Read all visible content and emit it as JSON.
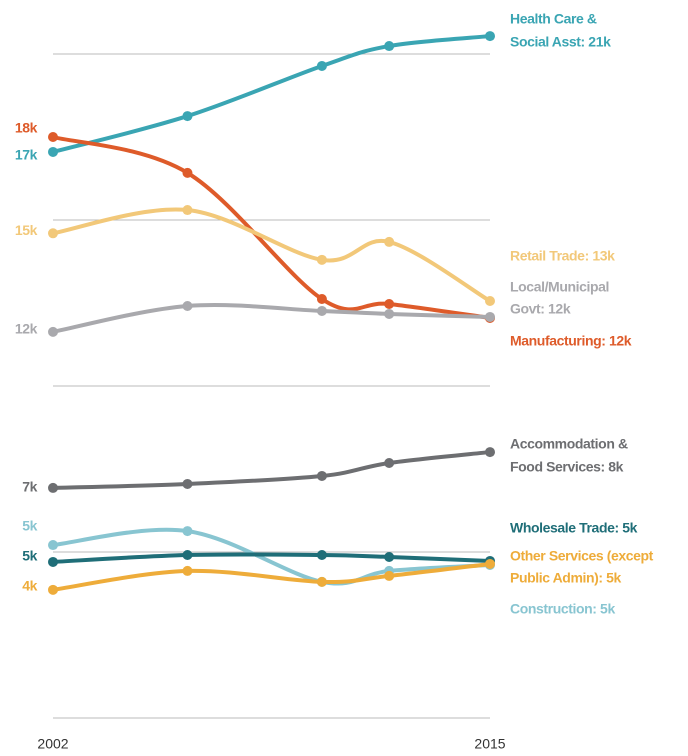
{
  "chart_data": {
    "type": "line",
    "x": [
      2002,
      2006,
      2010,
      2012,
      2015
    ],
    "xlim": [
      2002,
      2015
    ],
    "xticks": [
      2002,
      2015
    ],
    "ylim": [
      0,
      22
    ],
    "yticks": [
      0,
      5,
      10,
      15,
      20
    ],
    "grid": true,
    "series": [
      {
        "label": [
          "Health Care &",
          "Social Asst: 21k"
        ],
        "color": "#3aa5b3",
        "values": [
          17.05,
          18.13,
          19.64,
          20.24,
          20.54
        ],
        "value_labels": [
          "17k",
          null,
          null,
          null,
          null
        ]
      },
      {
        "label": [
          "Manufacturing: 12k"
        ],
        "color": "#de5b2a",
        "values": [
          17.5,
          16.42,
          12.62,
          12.47,
          12.05
        ],
        "value_labels": [
          "18k",
          null,
          null,
          null,
          null
        ]
      },
      {
        "label": [
          "Retail Trade: 13k"
        ],
        "color": "#f2c879",
        "values": [
          14.6,
          15.3,
          13.8,
          14.34,
          12.56
        ],
        "value_labels": [
          "15k",
          null,
          null,
          null,
          null
        ]
      },
      {
        "label": [
          "Local/Municipal",
          "Govt: 12k"
        ],
        "color": "#a9a9ad",
        "values": [
          11.63,
          12.41,
          12.26,
          12.17,
          12.08
        ],
        "value_labels": [
          "12k",
          null,
          null,
          null,
          null
        ]
      },
      {
        "label": [
          "Accommodation &",
          "Food Services: 8k"
        ],
        "color": "#6d6e71",
        "values": [
          6.93,
          7.05,
          7.29,
          7.68,
          8.01
        ],
        "value_labels": [
          "7k",
          null,
          null,
          null,
          null
        ]
      },
      {
        "label": [
          "Construction: 5k"
        ],
        "color": "#88c5d1",
        "values": [
          5.21,
          5.63,
          4.1,
          4.43,
          4.61
        ],
        "value_labels": [
          "5k",
          null,
          null,
          null,
          null
        ]
      },
      {
        "label": [
          "Wholesale Trade: 5k"
        ],
        "color": "#1f6e78",
        "values": [
          4.7,
          4.91,
          4.91,
          4.85,
          4.73
        ],
        "value_labels": [
          "5k",
          null,
          null,
          null,
          null
        ]
      },
      {
        "label": [
          "Other Services (except",
          "Public Admin): 5k"
        ],
        "color": "#eeac3a",
        "values": [
          3.86,
          4.43,
          4.1,
          4.28,
          4.64
        ],
        "value_labels": [
          "4k",
          null,
          null,
          null,
          null
        ]
      }
    ]
  }
}
